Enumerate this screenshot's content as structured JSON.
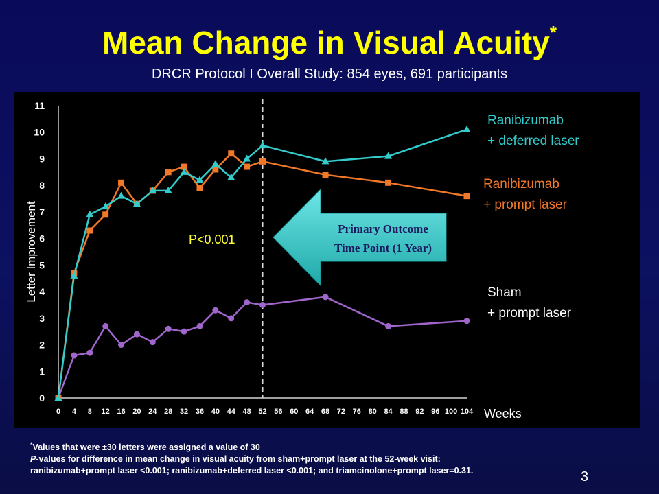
{
  "header": {
    "title": "Mean Change in Visual Acuity",
    "title_marker": "*",
    "subtitle": "DRCR Protocol I Overall Study: 854 eyes, 691 participants"
  },
  "footnote": {
    "marker": "*",
    "line1": "Values that were ±30 letters were assigned a value of 30",
    "line2_italic": "P",
    "line2": "-values for difference in mean change in visual  acuity  from sham+prompt laser at the 52-week visit:",
    "line3": "ranibizumab+prompt laser <0.001; ranibizumab+deferred laser <0.001; and triamcinolone+prompt laser=0.31."
  },
  "page_number": "3",
  "chart_data": {
    "type": "line",
    "title": "",
    "xlabel": "Weeks",
    "ylabel": "Letter Improvement",
    "xlim": [
      0,
      104
    ],
    "ylim": [
      0,
      11
    ],
    "x_ticks": [
      0,
      4,
      8,
      12,
      16,
      20,
      24,
      28,
      32,
      36,
      40,
      44,
      48,
      52,
      56,
      60,
      64,
      68,
      72,
      76,
      80,
      84,
      88,
      92,
      96,
      100,
      104
    ],
    "y_ticks": [
      0,
      1,
      2,
      3,
      4,
      5,
      6,
      7,
      8,
      9,
      10,
      11
    ],
    "grid": false,
    "reference_line": {
      "x": 52,
      "style": "dashed"
    },
    "annotation_pvalue": "P<0.001",
    "callout": {
      "line1": "Primary Outcome",
      "line2": "Time Point (1 Year)"
    },
    "series": [
      {
        "label_line1": "Ranibizumab",
        "label_line2": "+ deferred laser",
        "color": "#33cccc",
        "marker": "triangle",
        "x": [
          0,
          4,
          8,
          12,
          16,
          20,
          24,
          28,
          32,
          36,
          40,
          44,
          48,
          52,
          68,
          84,
          104
        ],
        "y": [
          0,
          4.6,
          6.9,
          7.2,
          7.6,
          7.3,
          7.8,
          7.8,
          8.5,
          8.2,
          8.8,
          8.3,
          9.0,
          9.5,
          8.9,
          9.1,
          10.1
        ]
      },
      {
        "label_line1": "Ranibizumab",
        "label_line2": "+ prompt laser",
        "color": "#f07828",
        "marker": "square",
        "x": [
          0,
          4,
          8,
          12,
          16,
          20,
          24,
          28,
          32,
          36,
          40,
          44,
          48,
          52,
          68,
          84,
          104
        ],
        "y": [
          0,
          4.7,
          6.3,
          6.9,
          8.1,
          7.3,
          7.8,
          8.5,
          8.7,
          7.9,
          8.6,
          9.2,
          8.7,
          8.9,
          8.4,
          8.1,
          7.6
        ]
      },
      {
        "label_line1": "Sham",
        "label_line2": "+ prompt laser",
        "color": "#a066cc",
        "marker": "circle",
        "x": [
          0,
          4,
          8,
          12,
          16,
          20,
          24,
          28,
          32,
          36,
          40,
          44,
          48,
          52,
          68,
          84,
          104
        ],
        "y": [
          0,
          1.6,
          1.7,
          2.7,
          2.0,
          2.4,
          2.1,
          2.6,
          2.5,
          2.7,
          3.3,
          3.0,
          3.6,
          3.5,
          3.8,
          2.7,
          2.9
        ]
      }
    ]
  }
}
